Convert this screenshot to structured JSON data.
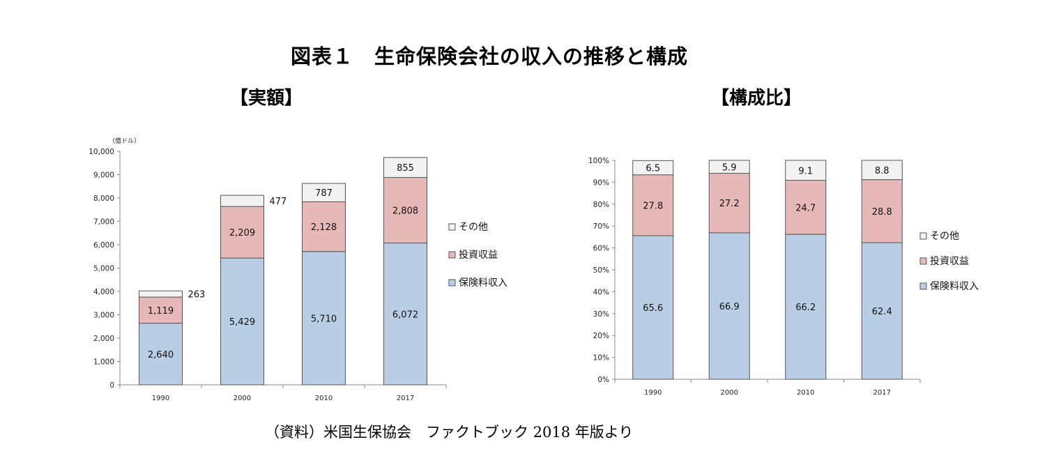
{
  "title": "図表１　生命保険会社の収入の推移と構成",
  "source": "（資料）米国生保協会　ファクトブック 2018 年版より",
  "chart_data": [
    {
      "type": "bar",
      "stacked": true,
      "title": "【実額】",
      "unit": "（億ドル）",
      "categories": [
        "1990",
        "2000",
        "2010",
        "2017"
      ],
      "series": [
        {
          "name": "保険料収入",
          "values": [
            2640,
            5429,
            5710,
            6072
          ],
          "labels": [
            "2,640",
            "5,429",
            "5,710",
            "6,072"
          ],
          "color": "#b9cde5"
        },
        {
          "name": "投資収益",
          "values": [
            1119,
            2209,
            2128,
            2808
          ],
          "labels": [
            "1,119",
            "2,209",
            "2,128",
            "2,808"
          ],
          "color": "#e6b9b8"
        },
        {
          "name": "その他",
          "values": [
            263,
            477,
            787,
            855
          ],
          "labels": [
            "263",
            "477",
            "787",
            "855"
          ],
          "color": "#f2f2f2"
        }
      ],
      "ylim": [
        0,
        10000
      ],
      "yticks": [
        0,
        1000,
        2000,
        3000,
        4000,
        5000,
        6000,
        7000,
        8000,
        9000,
        10000
      ],
      "ytick_labels": [
        "0",
        "1,000",
        "2,000",
        "3,000",
        "4,000",
        "5,000",
        "6,000",
        "7,000",
        "8,000",
        "9,000",
        "10,000"
      ],
      "legend": [
        "その他",
        "投資収益",
        "保険料収入"
      ],
      "legend_position": "right",
      "grid": false
    },
    {
      "type": "bar",
      "stacked": true,
      "title": "【構成比】",
      "categories": [
        "1990",
        "2000",
        "2010",
        "2017"
      ],
      "series": [
        {
          "name": "保険料収入",
          "values": [
            65.6,
            66.9,
            66.2,
            62.4
          ],
          "labels": [
            "65.6",
            "66.9",
            "66.2",
            "62.4"
          ],
          "color": "#b9cde5"
        },
        {
          "name": "投資収益",
          "values": [
            27.8,
            27.2,
            24.7,
            28.8
          ],
          "labels": [
            "27.8",
            "27.2",
            "24.7",
            "28.8"
          ],
          "color": "#e6b9b8"
        },
        {
          "name": "その他",
          "values": [
            6.5,
            5.9,
            9.1,
            8.8
          ],
          "labels": [
            "6.5",
            "5.9",
            "9.1",
            "8.8"
          ],
          "color": "#f2f2f2"
        }
      ],
      "ylim": [
        0,
        100
      ],
      "yticks": [
        0,
        10,
        20,
        30,
        40,
        50,
        60,
        70,
        80,
        90,
        100
      ],
      "ytick_labels": [
        "0%",
        "10%",
        "20%",
        "30%",
        "40%",
        "50%",
        "60%",
        "70%",
        "80%",
        "90%",
        "100%"
      ],
      "legend": [
        "その他",
        "投資収益",
        "保険料収入"
      ],
      "legend_position": "right",
      "grid": false
    }
  ]
}
